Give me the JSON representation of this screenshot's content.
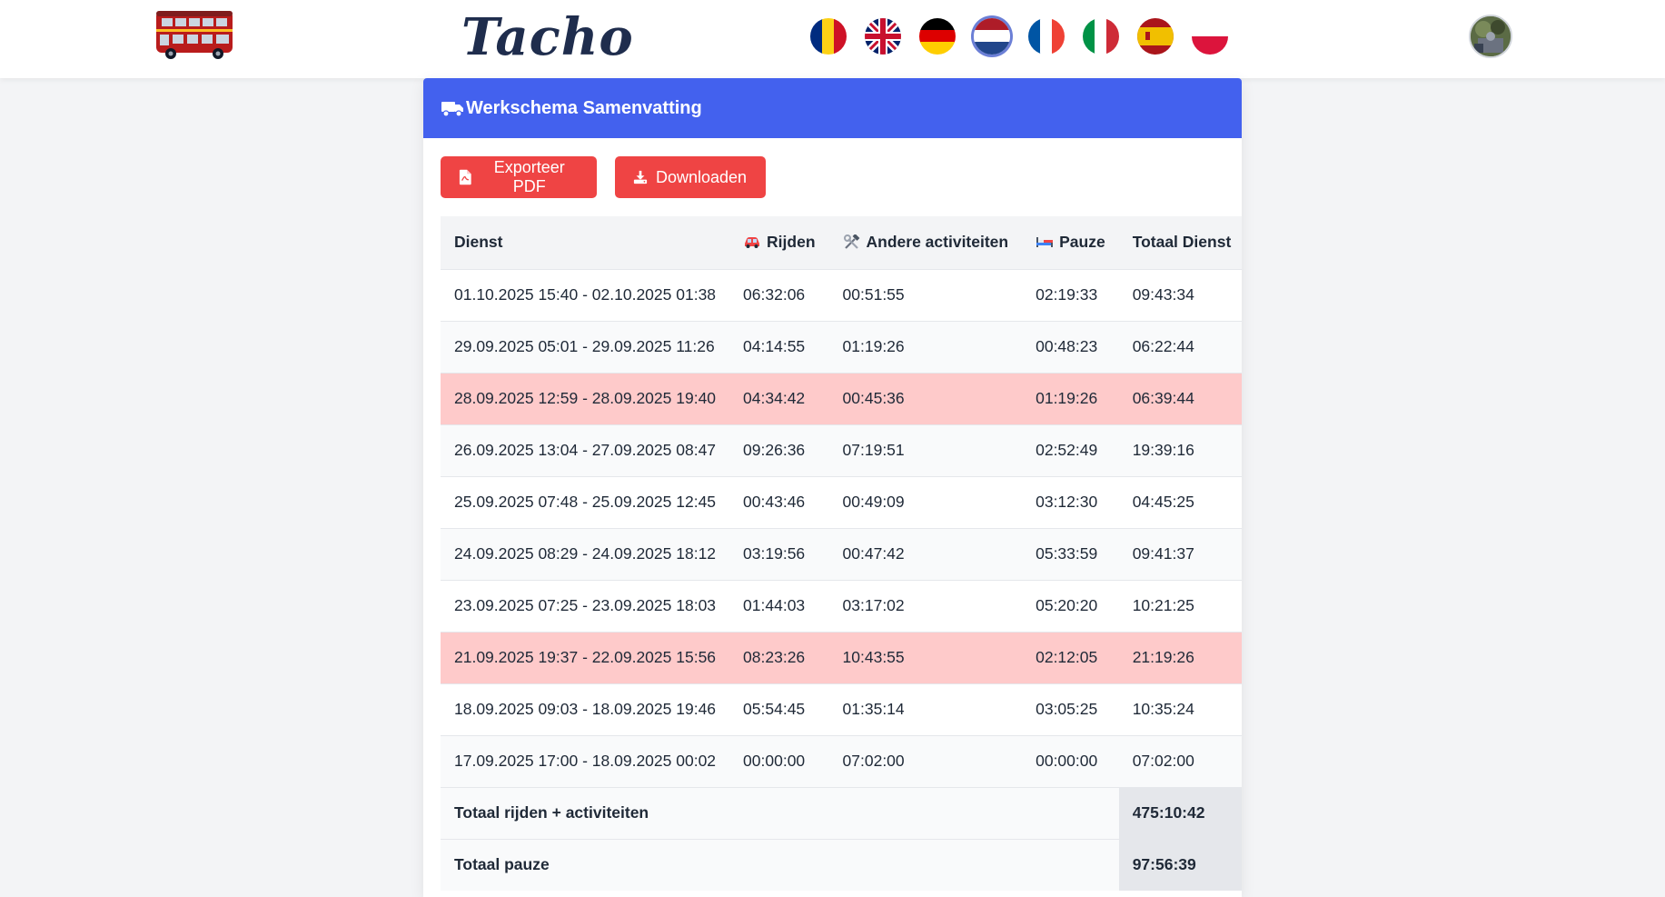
{
  "brand": {
    "name": "Tacho",
    "logo": "double-decker-bus-logo"
  },
  "languages": [
    {
      "code": "ro",
      "icon": "flag-romania-icon",
      "colors": [
        "#002b7f",
        "#fcd116",
        "#ce1126"
      ],
      "active": false
    },
    {
      "code": "en",
      "icon": "flag-uk-icon",
      "colors": [
        "#012169",
        "#ffffff",
        "#c8102e"
      ],
      "active": false
    },
    {
      "code": "de",
      "icon": "flag-germany-icon",
      "colors": [
        "#000000",
        "#dd0000",
        "#ffce00"
      ],
      "active": false
    },
    {
      "code": "nl",
      "icon": "flag-netherlands-icon",
      "colors": [
        "#ae1c28",
        "#ffffff",
        "#21468b"
      ],
      "active": true
    },
    {
      "code": "fr",
      "icon": "flag-france-icon",
      "colors": [
        "#0055a4",
        "#ffffff",
        "#ef4135"
      ],
      "active": false
    },
    {
      "code": "it",
      "icon": "flag-italy-icon",
      "colors": [
        "#009246",
        "#ffffff",
        "#ce2b37"
      ],
      "active": false
    },
    {
      "code": "es",
      "icon": "flag-spain-icon",
      "colors": [
        "#aa151b",
        "#f1bf00",
        "#aa151b"
      ],
      "active": false
    },
    {
      "code": "pl",
      "icon": "flag-poland-icon",
      "colors": [
        "#ffffff",
        "#dc143c"
      ],
      "active": false
    }
  ],
  "user": {
    "avatar_icon": "user-avatar"
  },
  "card": {
    "title": "Werkschema Samenvatting",
    "title_icon": "truck-icon",
    "header_color": "#4361ee"
  },
  "actions": {
    "export_pdf": {
      "label": "Exporteer PDF",
      "icon": "pdf-file-icon"
    },
    "download": {
      "label": "Downloaden",
      "icon": "download-icon"
    },
    "button_color": "#ef4444"
  },
  "table": {
    "columns": [
      {
        "key": "dienst",
        "label": "Dienst",
        "icon": ""
      },
      {
        "key": "rijden",
        "label": "Rijden",
        "icon": "car-icon"
      },
      {
        "key": "andere",
        "label": "Andere activiteiten",
        "icon": "hammer-wrench-icon"
      },
      {
        "key": "pauze",
        "label": "Pauze",
        "icon": "bed-icon"
      },
      {
        "key": "totaal",
        "label": "Totaal Dienst",
        "icon": ""
      }
    ],
    "rows": [
      {
        "dienst": "01.10.2025 15:40 - 02.10.2025 01:38",
        "rijden": "06:32:06",
        "andere": "00:51:55",
        "pauze": "02:19:33",
        "totaal": "09:43:34",
        "flagged": false
      },
      {
        "dienst": "29.09.2025 05:01 - 29.09.2025 11:26",
        "rijden": "04:14:55",
        "andere": "01:19:26",
        "pauze": "00:48:23",
        "totaal": "06:22:44",
        "flagged": false
      },
      {
        "dienst": "28.09.2025 12:59 - 28.09.2025 19:40",
        "rijden": "04:34:42",
        "andere": "00:45:36",
        "pauze": "01:19:26",
        "totaal": "06:39:44",
        "flagged": true
      },
      {
        "dienst": "26.09.2025 13:04 - 27.09.2025 08:47",
        "rijden": "09:26:36",
        "andere": "07:19:51",
        "pauze": "02:52:49",
        "totaal": "19:39:16",
        "flagged": false
      },
      {
        "dienst": "25.09.2025 07:48 - 25.09.2025 12:45",
        "rijden": "00:43:46",
        "andere": "00:49:09",
        "pauze": "03:12:30",
        "totaal": "04:45:25",
        "flagged": false
      },
      {
        "dienst": "24.09.2025 08:29 - 24.09.2025 18:12",
        "rijden": "03:19:56",
        "andere": "00:47:42",
        "pauze": "05:33:59",
        "totaal": "09:41:37",
        "flagged": false
      },
      {
        "dienst": "23.09.2025 07:25 - 23.09.2025 18:03",
        "rijden": "01:44:03",
        "andere": "03:17:02",
        "pauze": "05:20:20",
        "totaal": "10:21:25",
        "flagged": false
      },
      {
        "dienst": "21.09.2025 19:37 - 22.09.2025 15:56",
        "rijden": "08:23:26",
        "andere": "10:43:55",
        "pauze": "02:12:05",
        "totaal": "21:19:26",
        "flagged": true
      },
      {
        "dienst": "18.09.2025 09:03 - 18.09.2025 19:46",
        "rijden": "05:54:45",
        "andere": "01:35:14",
        "pauze": "03:05:25",
        "totaal": "10:35:24",
        "flagged": false
      },
      {
        "dienst": "17.09.2025 17:00 - 18.09.2025 00:02",
        "rijden": "00:00:00",
        "andere": "07:02:00",
        "pauze": "00:00:00",
        "totaal": "07:02:00",
        "flagged": false
      }
    ],
    "flag_color": "#fecaca",
    "totals": [
      {
        "label": "Totaal rijden + activiteiten",
        "value": "475:10:42"
      },
      {
        "label": "Totaal pauze",
        "value": "97:56:39"
      }
    ]
  }
}
